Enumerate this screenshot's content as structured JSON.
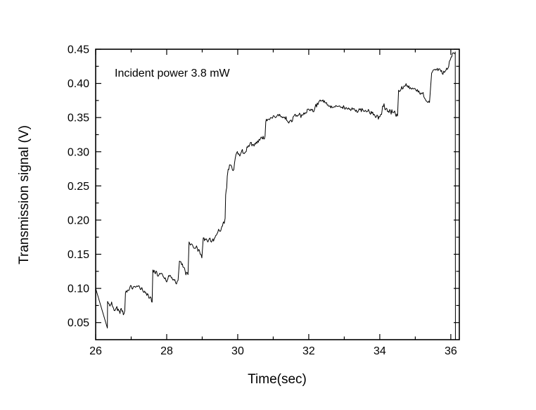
{
  "chart_data": {
    "type": "line",
    "title": "",
    "annotation": "Incident power 3.8 mW",
    "xlabel": "Time(sec)",
    "ylabel": "Transmission signal (V)",
    "xlim": [
      26,
      36.24
    ],
    "ylim": [
      0.025,
      0.45
    ],
    "xticks": [
      26,
      28,
      30,
      32,
      34,
      36
    ],
    "xminorticks": [
      27,
      29,
      31,
      33,
      35
    ],
    "yticks": [
      0.05,
      0.1,
      0.15,
      0.2,
      0.25,
      0.3,
      0.35,
      0.4,
      0.45
    ],
    "yminorticks": [
      0.075,
      0.125,
      0.175,
      0.225,
      0.275,
      0.325,
      0.375,
      0.425
    ],
    "ytick_decimals": 2,
    "grid": false,
    "legend": "none",
    "line_color": "#000000",
    "axis_color": "#000000",
    "background_color": "#ffffff",
    "noise_amplitude": 0.0028,
    "series": [
      {
        "name": "transmission signal",
        "segments": [
          {
            "noisy": false,
            "points": [
              [
                26.0,
                0.1
              ],
              [
                26.33,
                0.042
              ]
            ]
          },
          {
            "noisy": true,
            "points": [
              [
                26.335,
                0.081
              ],
              [
                26.4,
                0.074
              ],
              [
                26.45,
                0.078
              ],
              [
                26.52,
                0.068
              ],
              [
                26.58,
                0.074
              ],
              [
                26.65,
                0.066
              ],
              [
                26.72,
                0.07
              ],
              [
                26.78,
                0.063
              ],
              [
                26.82,
                0.066
              ]
            ]
          },
          {
            "noisy": true,
            "points": [
              [
                26.84,
                0.094
              ],
              [
                26.9,
                0.098
              ],
              [
                26.98,
                0.102
              ],
              [
                27.08,
                0.1
              ],
              [
                27.18,
                0.103
              ],
              [
                27.28,
                0.1
              ],
              [
                27.38,
                0.095
              ],
              [
                27.48,
                0.089
              ],
              [
                27.56,
                0.084
              ],
              [
                27.59,
                0.08
              ]
            ]
          },
          {
            "noisy": true,
            "points": [
              [
                27.61,
                0.127
              ],
              [
                27.68,
                0.124
              ],
              [
                27.76,
                0.119
              ],
              [
                27.84,
                0.123
              ],
              [
                27.92,
                0.117
              ],
              [
                28.0,
                0.112
              ],
              [
                28.07,
                0.118
              ],
              [
                28.15,
                0.115
              ],
              [
                28.23,
                0.111
              ],
              [
                28.32,
                0.109
              ]
            ]
          },
          {
            "noisy": true,
            "points": [
              [
                28.36,
                0.14
              ],
              [
                28.44,
                0.134
              ],
              [
                28.52,
                0.126
              ],
              [
                28.6,
                0.119
              ]
            ]
          },
          {
            "noisy": true,
            "points": [
              [
                28.63,
                0.168
              ],
              [
                28.7,
                0.164
              ],
              [
                28.77,
                0.159
              ],
              [
                28.84,
                0.162
              ],
              [
                28.92,
                0.152
              ],
              [
                28.99,
                0.146
              ]
            ]
          },
          {
            "noisy": true,
            "points": [
              [
                29.03,
                0.174
              ],
              [
                29.1,
                0.17
              ],
              [
                29.18,
                0.173
              ],
              [
                29.26,
                0.169
              ],
              [
                29.34,
                0.171
              ],
              [
                29.4,
                0.178
              ],
              [
                29.46,
                0.184
              ],
              [
                29.52,
                0.182
              ],
              [
                29.57,
                0.192
              ],
              [
                29.62,
                0.197
              ],
              [
                29.645,
                0.2
              ],
              [
                29.66,
                0.238
              ],
              [
                29.69,
                0.246
              ],
              [
                29.705,
                0.262
              ],
              [
                29.73,
                0.274
              ],
              [
                29.79,
                0.281
              ],
              [
                29.85,
                0.277
              ],
              [
                29.89,
                0.272
              ],
              [
                29.93,
                0.293
              ],
              [
                29.99,
                0.298
              ],
              [
                30.06,
                0.295
              ],
              [
                30.13,
                0.301
              ],
              [
                30.2,
                0.298
              ],
              [
                30.28,
                0.308
              ],
              [
                30.36,
                0.312
              ],
              [
                30.44,
                0.309
              ],
              [
                30.52,
                0.314
              ],
              [
                30.6,
                0.317
              ],
              [
                30.68,
                0.322
              ],
              [
                30.75,
                0.318
              ],
              [
                30.77,
                0.322
              ]
            ]
          },
          {
            "noisy": true,
            "points": [
              [
                30.79,
                0.344
              ],
              [
                30.86,
                0.348
              ],
              [
                30.96,
                0.352
              ],
              [
                31.06,
                0.35
              ],
              [
                31.16,
                0.353
              ],
              [
                31.26,
                0.35
              ],
              [
                31.36,
                0.347
              ],
              [
                31.44,
                0.341
              ],
              [
                31.52,
                0.346
              ],
              [
                31.6,
                0.352
              ],
              [
                31.7,
                0.355
              ],
              [
                31.8,
                0.352
              ],
              [
                31.9,
                0.357
              ],
              [
                32.0,
                0.363
              ],
              [
                32.1,
                0.36
              ],
              [
                32.2,
                0.367
              ],
              [
                32.3,
                0.373
              ],
              [
                32.38,
                0.376
              ],
              [
                32.46,
                0.371
              ],
              [
                32.56,
                0.368
              ],
              [
                32.66,
                0.366
              ],
              [
                32.78,
                0.367
              ],
              [
                32.9,
                0.364
              ],
              [
                33.02,
                0.366
              ],
              [
                33.14,
                0.363
              ],
              [
                33.26,
                0.362
              ],
              [
                33.38,
                0.36
              ],
              [
                33.5,
                0.361
              ],
              [
                33.62,
                0.358
              ],
              [
                33.72,
                0.36
              ],
              [
                33.82,
                0.354
              ],
              [
                33.92,
                0.351
              ],
              [
                34.0,
                0.349
              ],
              [
                34.05,
                0.355
              ],
              [
                34.08,
                0.368
              ],
              [
                34.14,
                0.364
              ],
              [
                34.22,
                0.36
              ],
              [
                34.32,
                0.357
              ],
              [
                34.42,
                0.356
              ],
              [
                34.5,
                0.352
              ]
            ]
          },
          {
            "noisy": true,
            "points": [
              [
                34.53,
                0.39
              ],
              [
                34.62,
                0.393
              ],
              [
                34.72,
                0.396
              ],
              [
                34.82,
                0.394
              ],
              [
                34.92,
                0.392
              ],
              [
                35.02,
                0.39
              ],
              [
                35.12,
                0.386
              ],
              [
                35.22,
                0.382
              ],
              [
                35.32,
                0.376
              ],
              [
                35.4,
                0.373
              ]
            ]
          },
          {
            "noisy": true,
            "points": [
              [
                35.46,
                0.415
              ],
              [
                35.54,
                0.42
              ],
              [
                35.62,
                0.421
              ],
              [
                35.7,
                0.418
              ],
              [
                35.78,
                0.416
              ],
              [
                35.86,
                0.419
              ],
              [
                35.92,
                0.423
              ],
              [
                35.96,
                0.431
              ],
              [
                36.01,
                0.438
              ],
              [
                36.06,
                0.444
              ],
              [
                36.1,
                0.441
              ],
              [
                36.12,
                0.446
              ]
            ]
          },
          {
            "noisy": false,
            "points": [
              [
                36.125,
                0.446
              ],
              [
                36.13,
                0.025
              ]
            ]
          }
        ]
      }
    ]
  }
}
